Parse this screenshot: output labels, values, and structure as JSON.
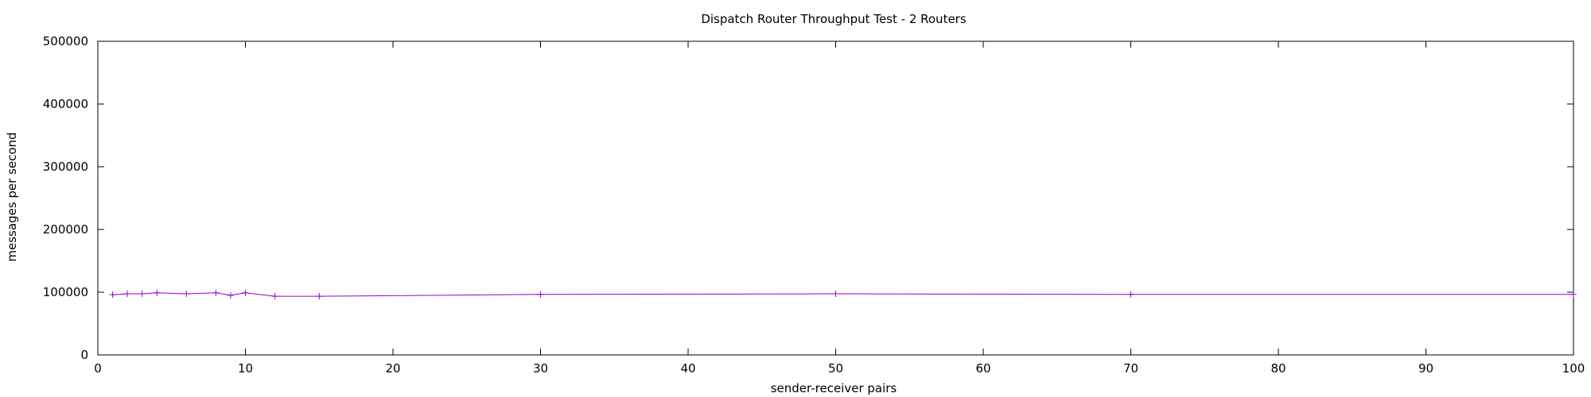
{
  "chart_data": {
    "type": "line",
    "title": "Dispatch Router Throughput Test - 2 Routers",
    "xlabel": "sender-receiver pairs",
    "ylabel": "messages per second",
    "xlim": [
      0,
      100
    ],
    "ylim": [
      0,
      500000
    ],
    "xticks": [
      0,
      10,
      20,
      30,
      40,
      50,
      60,
      70,
      80,
      90,
      100
    ],
    "yticks": [
      0,
      100000,
      200000,
      300000,
      400000,
      500000
    ],
    "grid": false,
    "series": [
      {
        "color": "#9400d3",
        "marker": "plus",
        "x": [
          1,
          2,
          3,
          4,
          6,
          8,
          9,
          10,
          12,
          15,
          30,
          50,
          70,
          100
        ],
        "y": [
          96000,
          97500,
          97500,
          99000,
          97500,
          99000,
          95000,
          99000,
          93500,
          93500,
          96500,
          97500,
          96500,
          96500
        ]
      }
    ]
  }
}
